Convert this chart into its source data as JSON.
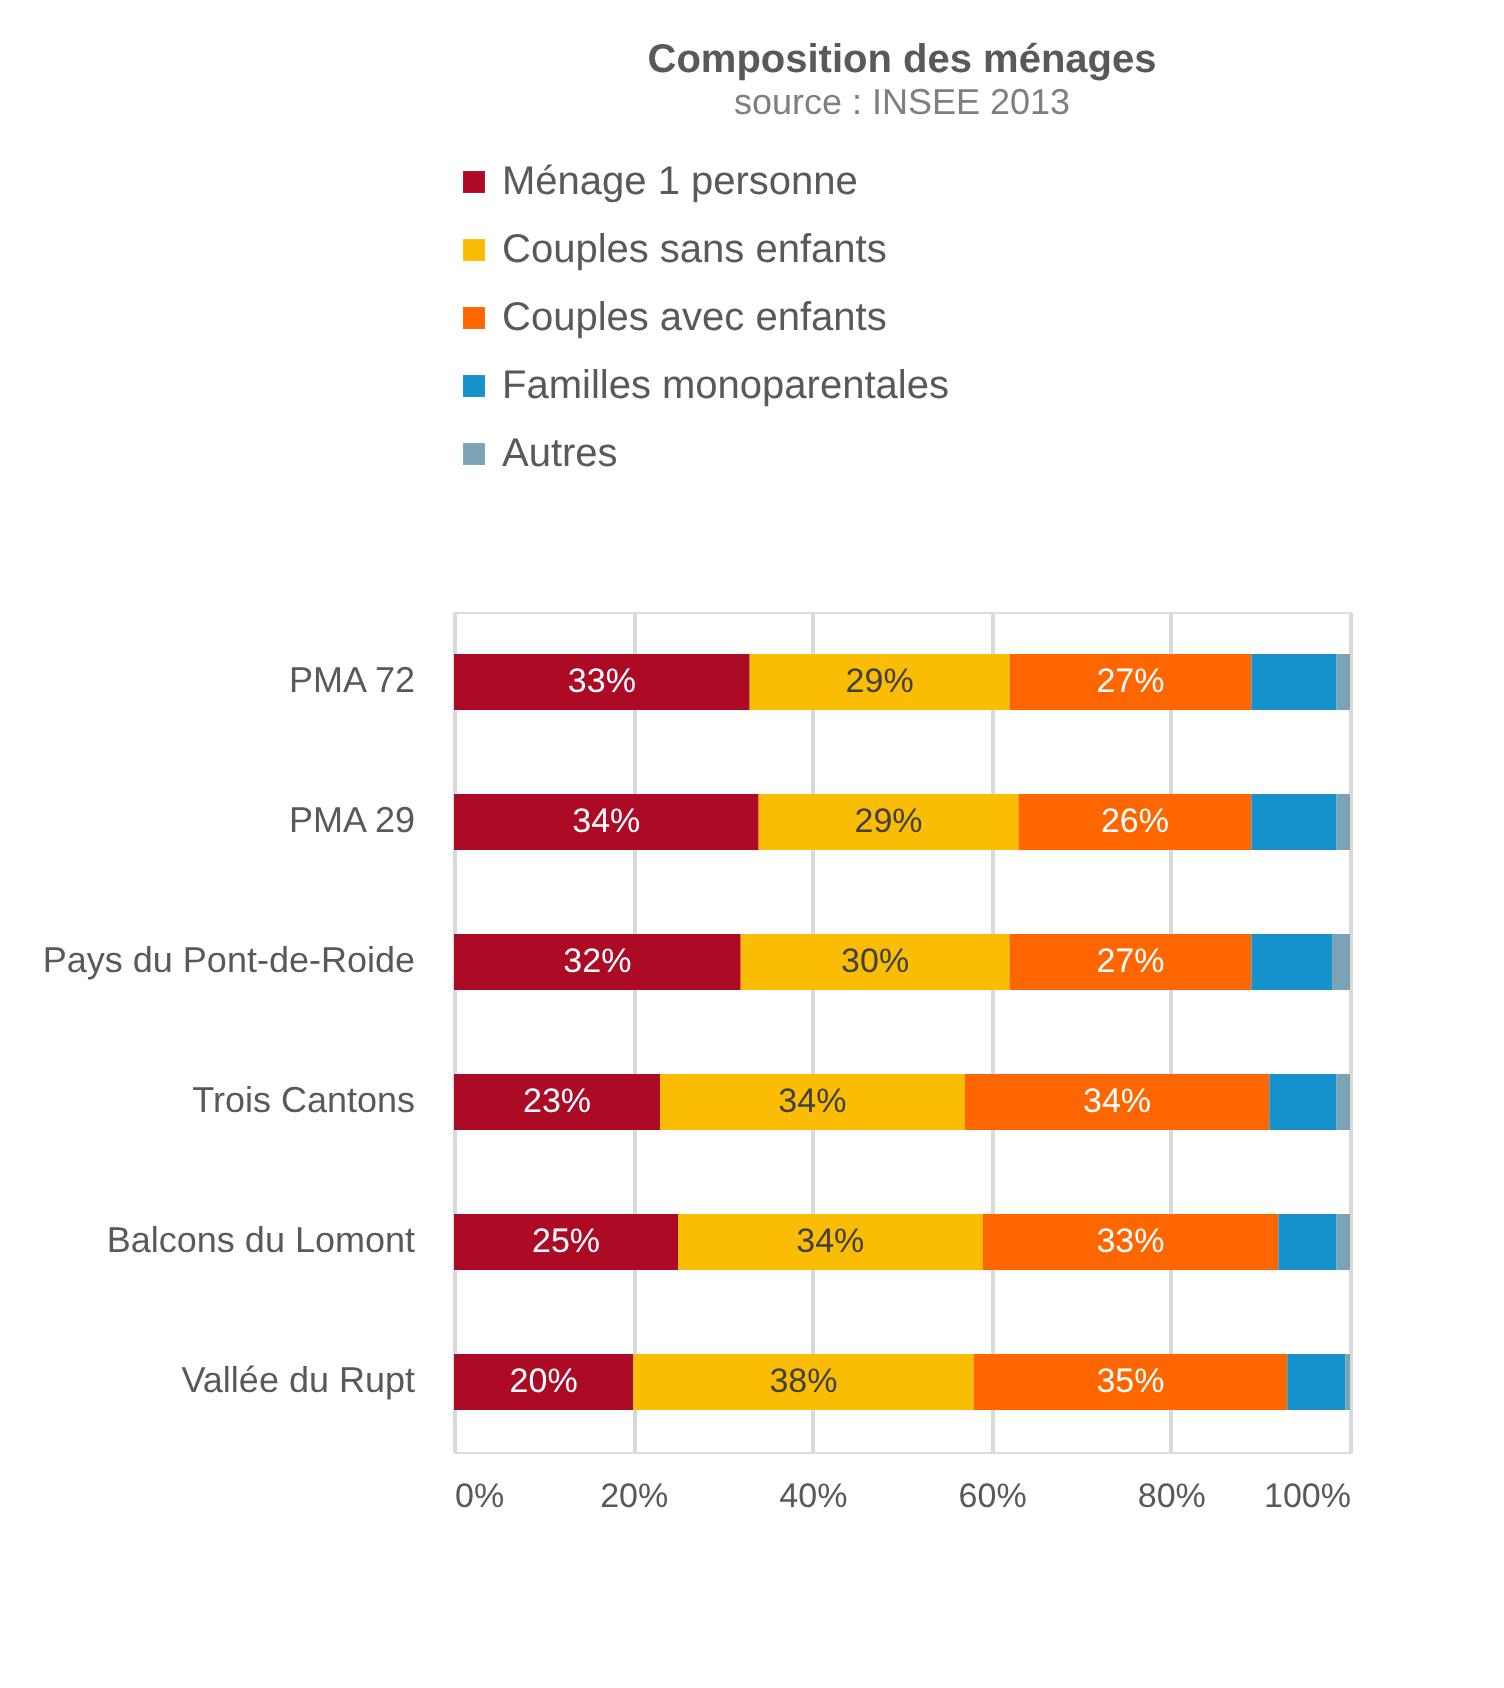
{
  "chart_data": {
    "type": "bar",
    "orientation": "horizontal",
    "stacked": true,
    "title": "Composition des ménages",
    "subtitle": "source : INSEE 2013",
    "categories": [
      "PMA 72",
      "PMA 29",
      "Pays du Pont-de-Roide",
      "Trois Cantons",
      "Balcons du Lomont",
      "Vallée du Rupt"
    ],
    "series": [
      {
        "name": "Ménage 1 personne",
        "color": "#ad0b25",
        "values": [
          33,
          34,
          32,
          23,
          25,
          20
        ],
        "value_labels": [
          "33%",
          "34%",
          "32%",
          "23%",
          "25%",
          "20%"
        ]
      },
      {
        "name": "Couples sans enfants",
        "color": "#fbbc04",
        "values": [
          29,
          29,
          30,
          34,
          34,
          38
        ],
        "value_labels": [
          "29%",
          "29%",
          "30%",
          "34%",
          "34%",
          "38%"
        ]
      },
      {
        "name": "Couples avec enfants",
        "color": "#ff6600",
        "values": [
          27,
          26,
          27,
          34,
          33,
          35
        ],
        "value_labels": [
          "27%",
          "26%",
          "27%",
          "34%",
          "33%",
          "35%"
        ]
      },
      {
        "name": "Familles monoparentales",
        "color": "#1592cc",
        "values": [
          9.5,
          9.5,
          9,
          7.5,
          6.5,
          6.5
        ]
      },
      {
        "name": "Autres",
        "color": "#7ba3b5",
        "values": [
          1.5,
          1.5,
          2,
          1.5,
          1.5,
          0.5
        ]
      }
    ],
    "xlim": [
      0,
      100
    ],
    "xticks": [
      {
        "value": 0,
        "label": "0%"
      },
      {
        "value": 20,
        "label": "20%"
      },
      {
        "value": 40,
        "label": "40%"
      },
      {
        "value": 60,
        "label": "60%"
      },
      {
        "value": 80,
        "label": "80%"
      },
      {
        "value": 100,
        "label": "100%"
      }
    ],
    "grid": "x",
    "legend": "top"
  }
}
